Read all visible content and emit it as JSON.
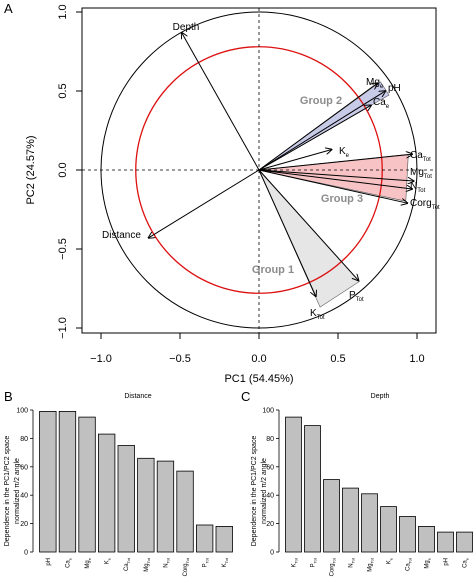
{
  "panels": {
    "A": "A",
    "B": "B",
    "C": "C"
  },
  "colors": {
    "circle_outer": "#000000",
    "circle_inner": "#dd1111",
    "group1_fill": "#e6e6e6",
    "group2_fill": "#c8cbe8",
    "group3_fill": "#f7c3c5",
    "bar_fill": "#c0c0c0",
    "group_label": "#8c8c8c"
  },
  "chart_data": [
    {
      "type": "scatter",
      "subtype": "pca-correlation-circle",
      "panel": "A",
      "xlabel": "PC1 (54.45%)",
      "ylabel": "PC2 (24.57%)",
      "xlim": [
        -1.0,
        1.0
      ],
      "ylim": [
        -1.0,
        1.0
      ],
      "x_ticks": [
        "−1.0",
        "−0.5",
        "0.0",
        "0.5",
        "1.0"
      ],
      "y_ticks": [
        "−1.0",
        "−0.5",
        "0.0",
        "0.5",
        "1.0"
      ],
      "outer_circle_radius": 1.0,
      "inner_circle_radius": 0.78,
      "vectors": [
        {
          "label": "Depth",
          "sub": "",
          "x": -0.49,
          "y": 0.87
        },
        {
          "label": "Mg",
          "sub": "e",
          "x": 0.75,
          "y": 0.55
        },
        {
          "label": "pH",
          "sub": "",
          "x": 0.8,
          "y": 0.5
        },
        {
          "label": "Ca",
          "sub": "e",
          "x": 0.71,
          "y": 0.41
        },
        {
          "label": "K",
          "sub": "e",
          "x": 0.46,
          "y": 0.13
        },
        {
          "label": "Ca",
          "sub": "Tot",
          "x": 0.97,
          "y": 0.1
        },
        {
          "label": "Mg",
          "sub": "Tot",
          "x": 0.98,
          "y": -0.07
        },
        {
          "label": "N",
          "sub": "Tot",
          "x": 0.97,
          "y": -0.12
        },
        {
          "label": "Corg",
          "sub": "Tot",
          "x": 0.94,
          "y": -0.21
        },
        {
          "label": "Distance",
          "sub": "",
          "x": -0.7,
          "y": -0.43
        },
        {
          "label": "P",
          "sub": "Tot",
          "x": 0.63,
          "y": -0.7
        },
        {
          "label": "K",
          "sub": "Tot",
          "x": 0.36,
          "y": -0.8
        }
      ],
      "groups": [
        {
          "label": "Group 1",
          "tip_angle_deg": [
            -48,
            -66
          ]
        },
        {
          "label": "Group 2",
          "tip_angle_deg": [
            30,
            36
          ]
        },
        {
          "label": "Group 3",
          "tip_angle_deg": [
            -12,
            6
          ]
        }
      ]
    },
    {
      "type": "bar",
      "panel": "B",
      "title": "Distance",
      "ylabel": "Dependence in the PC1/PC2 space",
      "ylabel2": "normalized π/2 angle",
      "ylim": [
        0,
        100
      ],
      "y_ticks": [
        "0",
        "20",
        "40",
        "60",
        "80",
        "100"
      ],
      "categories": [
        {
          "label": "pH",
          "sub": ""
        },
        {
          "label": "Ca",
          "sub": "e"
        },
        {
          "label": "Mg",
          "sub": "e"
        },
        {
          "label": "K",
          "sub": "e"
        },
        {
          "label": "Ca",
          "sub": "Tot"
        },
        {
          "label": "Mg",
          "sub": "Tot"
        },
        {
          "label": "N",
          "sub": "Tot"
        },
        {
          "label": "Corg",
          "sub": "Tot"
        },
        {
          "label": "P",
          "sub": "Tot"
        },
        {
          "label": "K",
          "sub": "Tot"
        }
      ],
      "values": [
        99,
        99,
        95,
        83,
        75,
        66,
        64,
        57,
        19,
        18
      ]
    },
    {
      "type": "bar",
      "panel": "C",
      "title": "Depth",
      "ylabel": "Dependence in the PC1/PC2 space",
      "ylabel2": "normalized π/2 angle",
      "ylim": [
        0,
        100
      ],
      "y_ticks": [
        "0",
        "20",
        "40",
        "60",
        "80",
        "100"
      ],
      "categories": [
        {
          "label": "K",
          "sub": "Tot"
        },
        {
          "label": "P",
          "sub": "Tot"
        },
        {
          "label": "Corg",
          "sub": "Tot"
        },
        {
          "label": "N",
          "sub": "Tot"
        },
        {
          "label": "Mg",
          "sub": "Tot"
        },
        {
          "label": "K",
          "sub": "e"
        },
        {
          "label": "Ca",
          "sub": "Tot"
        },
        {
          "label": "Mg",
          "sub": "e"
        },
        {
          "label": "pH",
          "sub": ""
        },
        {
          "label": "Ca",
          "sub": "e"
        }
      ],
      "values": [
        95,
        89,
        51,
        45,
        41,
        32,
        25,
        18,
        14,
        14
      ]
    }
  ]
}
